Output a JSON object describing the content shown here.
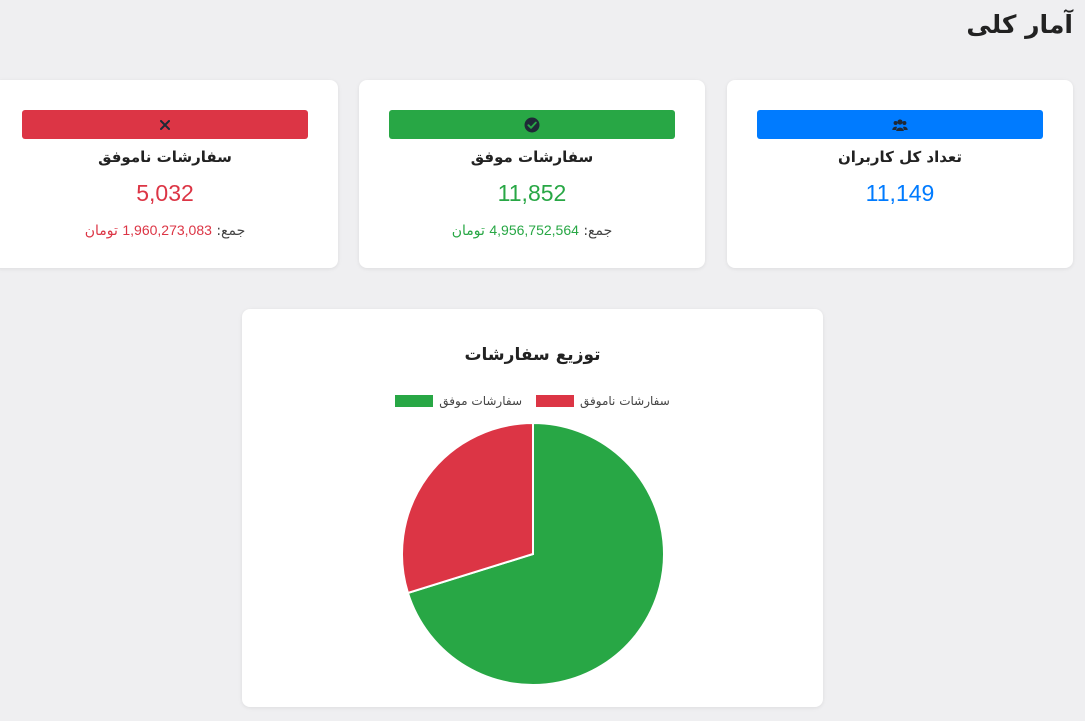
{
  "page": {
    "title": "آمار کلی"
  },
  "cards": {
    "users": {
      "icon": "users-icon",
      "label": "تعداد کل کاربران",
      "value": "11,149",
      "color": "#007bff"
    },
    "success": {
      "icon": "check-circle-icon",
      "label": "سفارشات موفق",
      "value": "11,852",
      "sum_label": "جمع:",
      "sum_value": "4,956,752,564",
      "sum_unit": "تومان",
      "color": "#28a745"
    },
    "failed": {
      "icon": "close-icon",
      "label": "سفارشات ناموفق",
      "value": "5,032",
      "sum_label": "جمع:",
      "sum_value": "1,960,273,083",
      "sum_unit": "تومان",
      "color": "#dc3545"
    }
  },
  "chart_data": {
    "type": "pie",
    "title": "توزیع سفارشات",
    "categories": [
      "سفارشات ناموفق",
      "سفارشات موفق"
    ],
    "values": [
      5032,
      11852
    ],
    "colors": [
      "#dc3545",
      "#28a745"
    ],
    "legend_position": "top"
  }
}
